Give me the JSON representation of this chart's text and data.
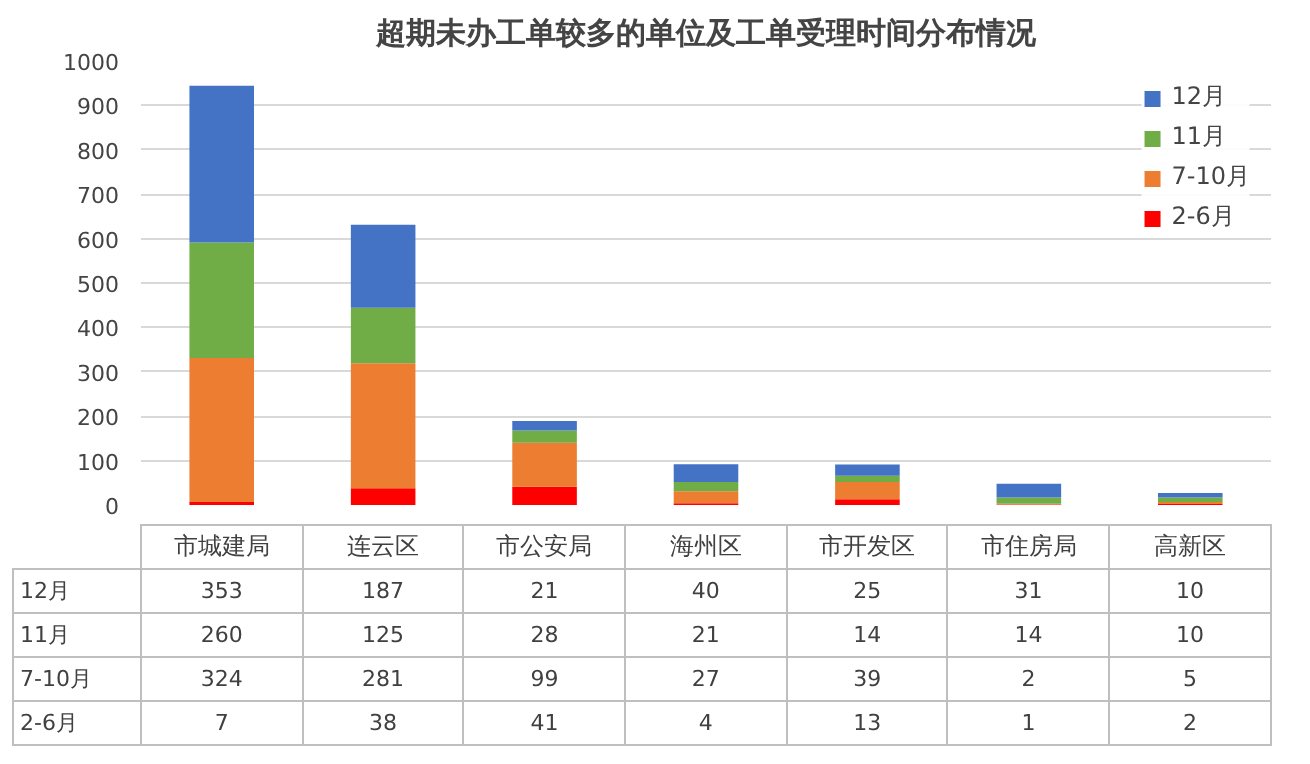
{
  "chart_data": {
    "type": "bar",
    "title": "超期未办工单较多的单位及工单受理时间分布情况",
    "categories": [
      "市城建局",
      "连云区",
      "市公安局",
      "海州区",
      "市开发区",
      "市住房局",
      "高新区"
    ],
    "stacked": true,
    "data_labels": true,
    "grid": "y",
    "legend": "top right",
    "ylim": [
      0,
      1000
    ],
    "yticks": [
      0,
      100,
      200,
      300,
      400,
      500,
      600,
      700,
      800,
      900,
      1000
    ],
    "series": [
      {
        "name": "2-6月",
        "color": "#ff0000",
        "values": [
          7,
          38,
          41,
          4,
          13,
          1,
          2
        ]
      },
      {
        "name": "7-10月",
        "color": "#ed7d31",
        "values": [
          324,
          281,
          99,
          27,
          39,
          2,
          5
        ]
      },
      {
        "name": "11月",
        "color": "#70ad47",
        "values": [
          260,
          125,
          28,
          21,
          14,
          14,
          10
        ]
      },
      {
        "name": "12月",
        "color": "#4472c4",
        "values": [
          353,
          187,
          21,
          40,
          25,
          31,
          10
        ]
      }
    ]
  }
}
